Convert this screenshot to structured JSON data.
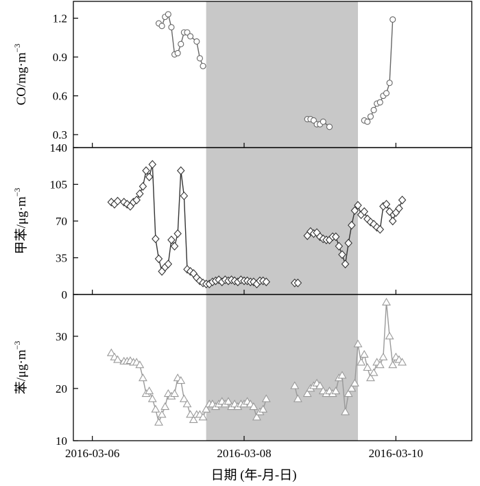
{
  "chart_data": {
    "type": "scatter",
    "xlabel": "日期 (年-月-日)",
    "x_ticks": [
      "2016-03-06",
      "2016-03-08",
      "2016-03-10"
    ],
    "x_range": [
      "2016-03-05 18:00",
      "2016-03-11 00:00"
    ],
    "shaded_interval": [
      "2016-03-07 12:00",
      "2016-03-09 12:00"
    ],
    "grid": false,
    "panels": [
      {
        "ylabel_main": "CO/mg·m",
        "ylabel_sup": "−3",
        "ylim": [
          0.2,
          1.33
        ],
        "yticks": [
          "0.3",
          "0.6",
          "0.9",
          "1.2"
        ],
        "ytick_values": [
          0.3,
          0.6,
          0.9,
          1.2
        ],
        "marker": "circle",
        "color": "#666666",
        "segments": [
          [
            [
              "2016-03-06 21:00",
              1.16
            ],
            [
              "2016-03-06 22:00",
              1.14
            ],
            [
              "2016-03-06 23:00",
              1.21
            ],
            [
              "2016-03-07 00:00",
              1.23
            ],
            [
              "2016-03-07 01:00",
              1.13
            ],
            [
              "2016-03-07 02:00",
              0.92
            ],
            [
              "2016-03-07 03:00",
              0.93
            ],
            [
              "2016-03-07 04:00",
              1.0
            ],
            [
              "2016-03-07 05:00",
              1.09
            ],
            [
              "2016-03-07 06:00",
              1.09
            ],
            [
              "2016-03-07 07:00",
              1.06
            ],
            [
              "2016-03-07 09:00",
              1.02
            ],
            [
              "2016-03-07 10:00",
              0.89
            ],
            [
              "2016-03-07 11:00",
              0.83
            ]
          ],
          [
            [
              "2016-03-08 20:00",
              0.42
            ],
            [
              "2016-03-08 21:00",
              0.42
            ],
            [
              "2016-03-08 22:00",
              0.41
            ],
            [
              "2016-03-08 23:00",
              0.38
            ],
            [
              "2016-03-09 00:00",
              0.38
            ],
            [
              "2016-03-09 01:00",
              0.4
            ],
            [
              "2016-03-09 03:00",
              0.36
            ]
          ],
          [
            [
              "2016-03-09 14:00",
              0.41
            ],
            [
              "2016-03-09 15:00",
              0.4
            ],
            [
              "2016-03-09 16:00",
              0.44
            ],
            [
              "2016-03-09 17:00",
              0.49
            ],
            [
              "2016-03-09 18:00",
              0.54
            ],
            [
              "2016-03-09 19:00",
              0.55
            ],
            [
              "2016-03-09 20:00",
              0.6
            ],
            [
              "2016-03-09 21:00",
              0.62
            ],
            [
              "2016-03-09 22:00",
              0.7
            ],
            [
              "2016-03-09 23:00",
              1.19
            ]
          ]
        ]
      },
      {
        "ylabel_main": "甲苯/μg·m",
        "ylabel_sup": "−3",
        "ylim": [
          0,
          140
        ],
        "yticks": [
          "0",
          "35",
          "70",
          "105",
          "140"
        ],
        "ytick_values": [
          0,
          35,
          70,
          105,
          140
        ],
        "marker": "diamond",
        "color": "#333333",
        "segments": [
          [
            [
              "2016-03-06 06:00",
              88
            ],
            [
              "2016-03-06 07:00",
              86
            ],
            [
              "2016-03-06 08:00",
              89
            ],
            [
              "2016-03-06 10:00",
              88
            ],
            [
              "2016-03-06 11:00",
              86
            ],
            [
              "2016-03-06 12:00",
              84
            ],
            [
              "2016-03-06 13:00",
              88
            ],
            [
              "2016-03-06 14:00",
              90
            ],
            [
              "2016-03-06 15:00",
              96
            ],
            [
              "2016-03-06 16:00",
              103
            ],
            [
              "2016-03-06 17:00",
              118
            ],
            [
              "2016-03-06 18:00",
              112
            ],
            [
              "2016-03-06 19:00",
              124
            ],
            [
              "2016-03-06 20:00",
              53
            ],
            [
              "2016-03-06 21:00",
              34
            ],
            [
              "2016-03-06 22:00",
              22
            ],
            [
              "2016-03-06 23:00",
              26
            ],
            [
              "2016-03-07 00:00",
              29
            ],
            [
              "2016-03-07 01:00",
              52
            ],
            [
              "2016-03-07 02:00",
              46
            ],
            [
              "2016-03-07 03:00",
              58
            ],
            [
              "2016-03-07 04:00",
              118
            ],
            [
              "2016-03-07 05:00",
              94
            ],
            [
              "2016-03-07 06:00",
              24
            ],
            [
              "2016-03-07 07:00",
              22
            ],
            [
              "2016-03-07 08:00",
              20
            ],
            [
              "2016-03-07 09:00",
              16
            ],
            [
              "2016-03-07 10:00",
              13
            ],
            [
              "2016-03-07 11:00",
              11
            ],
            [
              "2016-03-07 12:00",
              10
            ],
            [
              "2016-03-07 13:00",
              10
            ],
            [
              "2016-03-07 14:00",
              12
            ],
            [
              "2016-03-07 15:00",
              13
            ],
            [
              "2016-03-07 16:00",
              14
            ],
            [
              "2016-03-07 17:00",
              12
            ],
            [
              "2016-03-07 18:00",
              14
            ],
            [
              "2016-03-07 19:00",
              13
            ],
            [
              "2016-03-07 20:00",
              14
            ],
            [
              "2016-03-07 21:00",
              13
            ],
            [
              "2016-03-07 22:00",
              12
            ],
            [
              "2016-03-07 23:00",
              14
            ],
            [
              "2016-03-08 00:00",
              13
            ],
            [
              "2016-03-08 01:00",
              13
            ],
            [
              "2016-03-08 02:00",
              12
            ],
            [
              "2016-03-08 03:00",
              12
            ],
            [
              "2016-03-08 04:00",
              10
            ],
            [
              "2016-03-08 05:00",
              13
            ],
            [
              "2016-03-08 06:00",
              13
            ],
            [
              "2016-03-08 07:00",
              12
            ]
          ],
          [
            [
              "2016-03-08 16:00",
              11
            ],
            [
              "2016-03-08 17:00",
              11
            ]
          ],
          [
            [
              "2016-03-08 20:00",
              56
            ],
            [
              "2016-03-08 21:00",
              60
            ],
            [
              "2016-03-08 22:00",
              58
            ],
            [
              "2016-03-08 23:00",
              59
            ],
            [
              "2016-03-09 00:00",
              55
            ],
            [
              "2016-03-09 01:00",
              53
            ],
            [
              "2016-03-09 02:00",
              52
            ],
            [
              "2016-03-09 03:00",
              52
            ],
            [
              "2016-03-09 04:00",
              55
            ],
            [
              "2016-03-09 05:00",
              55
            ],
            [
              "2016-03-09 06:00",
              46
            ],
            [
              "2016-03-09 07:00",
              38
            ],
            [
              "2016-03-09 08:00",
              29
            ],
            [
              "2016-03-09 09:00",
              49
            ],
            [
              "2016-03-09 10:00",
              66
            ],
            [
              "2016-03-09 11:00",
              80
            ],
            [
              "2016-03-09 12:00",
              85
            ],
            [
              "2016-03-09 13:00",
              76
            ],
            [
              "2016-03-09 14:00",
              79
            ],
            [
              "2016-03-09 15:00",
              72
            ],
            [
              "2016-03-09 16:00",
              69
            ],
            [
              "2016-03-09 17:00",
              67
            ],
            [
              "2016-03-09 18:00",
              64
            ],
            [
              "2016-03-09 19:00",
              62
            ],
            [
              "2016-03-09 20:00",
              84
            ],
            [
              "2016-03-09 21:00",
              86
            ],
            [
              "2016-03-09 22:00",
              79
            ],
            [
              "2016-03-09 23:00",
              70
            ],
            [
              "2016-03-10 00:00",
              78
            ],
            [
              "2016-03-10 01:00",
              82
            ],
            [
              "2016-03-10 02:00",
              90
            ]
          ]
        ]
      },
      {
        "ylabel_main": "苯/μg·m",
        "ylabel_sup": "−3",
        "ylim": [
          10,
          38
        ],
        "yticks": [
          "10",
          "20",
          "30"
        ],
        "ytick_values": [
          10,
          20,
          30
        ],
        "marker": "triangle",
        "color": "#999999",
        "segments": [
          [
            [
              "2016-03-06 06:00",
              26.8
            ],
            [
              "2016-03-06 07:00",
              26.0
            ],
            [
              "2016-03-06 08:00",
              25.5
            ],
            [
              "2016-03-06 10:00",
              25.2
            ],
            [
              "2016-03-06 11:00",
              25.2
            ],
            [
              "2016-03-06 12:00",
              25.3
            ],
            [
              "2016-03-06 13:00",
              25.0
            ],
            [
              "2016-03-06 14:00",
              25.0
            ],
            [
              "2016-03-06 15:00",
              24.5
            ],
            [
              "2016-03-06 16:00",
              22.0
            ],
            [
              "2016-03-06 17:00",
              19.0
            ],
            [
              "2016-03-06 18:00",
              19.5
            ],
            [
              "2016-03-06 19:00",
              18.0
            ],
            [
              "2016-03-06 20:00",
              16.0
            ],
            [
              "2016-03-06 21:00",
              13.5
            ],
            [
              "2016-03-06 22:00",
              15.0
            ],
            [
              "2016-03-06 23:00",
              16.5
            ],
            [
              "2016-03-07 00:00",
              19.0
            ],
            [
              "2016-03-07 01:00",
              18.5
            ],
            [
              "2016-03-07 02:00",
              19.0
            ],
            [
              "2016-03-07 03:00",
              22.0
            ],
            [
              "2016-03-07 04:00",
              21.5
            ],
            [
              "2016-03-07 05:00",
              18.0
            ],
            [
              "2016-03-07 06:00",
              17.0
            ],
            [
              "2016-03-07 07:00",
              15.0
            ],
            [
              "2016-03-07 08:00",
              14.0
            ],
            [
              "2016-03-07 09:00",
              15.0
            ],
            [
              "2016-03-07 10:00",
              15.0
            ],
            [
              "2016-03-07 11:00",
              14.5
            ],
            [
              "2016-03-07 12:00",
              16.0
            ],
            [
              "2016-03-07 13:00",
              17.0
            ],
            [
              "2016-03-07 14:00",
              17.0
            ],
            [
              "2016-03-07 15:00",
              16.5
            ],
            [
              "2016-03-07 16:00",
              17.0
            ],
            [
              "2016-03-07 17:00",
              17.5
            ],
            [
              "2016-03-07 18:00",
              17.0
            ],
            [
              "2016-03-07 19:00",
              17.5
            ],
            [
              "2016-03-07 20:00",
              16.5
            ],
            [
              "2016-03-07 21:00",
              17.0
            ],
            [
              "2016-03-07 22:00",
              16.5
            ],
            [
              "2016-03-07 23:00",
              17.0
            ],
            [
              "2016-03-08 00:00",
              17.0
            ],
            [
              "2016-03-08 01:00",
              17.5
            ],
            [
              "2016-03-08 02:00",
              17.0
            ],
            [
              "2016-03-08 03:00",
              16.5
            ],
            [
              "2016-03-08 04:00",
              14.5
            ],
            [
              "2016-03-08 05:00",
              15.5
            ],
            [
              "2016-03-08 06:00",
              16.0
            ],
            [
              "2016-03-08 07:00",
              18.0
            ]
          ],
          [
            [
              "2016-03-08 16:00",
              20.5
            ],
            [
              "2016-03-08 17:00",
              18.0
            ]
          ],
          [
            [
              "2016-03-08 20:00",
              19.0
            ],
            [
              "2016-03-08 21:00",
              20.0
            ],
            [
              "2016-03-08 22:00",
              20.5
            ],
            [
              "2016-03-08 23:00",
              21.0
            ],
            [
              "2016-03-09 00:00",
              20.5
            ],
            [
              "2016-03-09 01:00",
              19.5
            ],
            [
              "2016-03-09 02:00",
              19.0
            ],
            [
              "2016-03-09 03:00",
              19.5
            ],
            [
              "2016-03-09 04:00",
              19.0
            ],
            [
              "2016-03-09 05:00",
              19.5
            ],
            [
              "2016-03-09 06:00",
              22.0
            ],
            [
              "2016-03-09 07:00",
              22.5
            ],
            [
              "2016-03-09 08:00",
              15.5
            ],
            [
              "2016-03-09 09:00",
              19.0
            ],
            [
              "2016-03-09 10:00",
              20.0
            ],
            [
              "2016-03-09 11:00",
              21.0
            ],
            [
              "2016-03-09 12:00",
              28.5
            ],
            [
              "2016-03-09 13:00",
              25.0
            ],
            [
              "2016-03-09 14:00",
              26.5
            ],
            [
              "2016-03-09 15:00",
              24.0
            ],
            [
              "2016-03-09 16:00",
              22.0
            ],
            [
              "2016-03-09 17:00",
              23.0
            ],
            [
              "2016-03-09 18:00",
              25.0
            ],
            [
              "2016-03-09 19:00",
              24.5
            ],
            [
              "2016-03-09 20:00",
              26.0
            ],
            [
              "2016-03-09 21:00",
              36.5
            ],
            [
              "2016-03-09 22:00",
              30.0
            ],
            [
              "2016-03-09 23:00",
              24.5
            ],
            [
              "2016-03-10 00:00",
              26.0
            ],
            [
              "2016-03-10 01:00",
              25.5
            ],
            [
              "2016-03-10 02:00",
              25.0
            ]
          ]
        ]
      }
    ]
  }
}
